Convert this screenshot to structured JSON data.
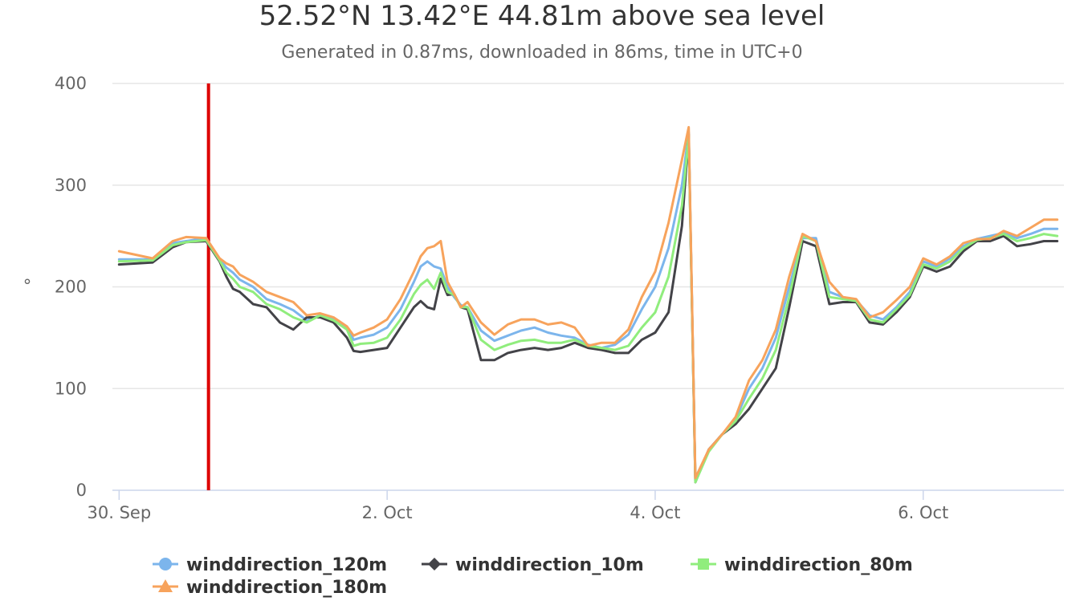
{
  "header": {
    "title": "52.52°N 13.42°E 44.81m above sea level",
    "subtitle": "Generated in 0.87ms, downloaded in 86ms, time in UTC+0"
  },
  "chart_data": {
    "type": "line",
    "title": "52.52°N 13.42°E 44.81m above sea level",
    "subtitle": "Generated in 0.87ms, downloaded in 86ms, time in UTC+0",
    "xlabel": "",
    "ylabel": "°",
    "x_unit": "days since 30. Sep 00:00 UTC",
    "xlim": [
      -0.05,
      7.05
    ],
    "ylim": [
      0,
      400
    ],
    "yticks": [
      0,
      100,
      200,
      300,
      400
    ],
    "xticks": [
      {
        "value": 0,
        "label": "30. Sep"
      },
      {
        "value": 2,
        "label": "2. Oct"
      },
      {
        "value": 4,
        "label": "4. Oct"
      },
      {
        "value": 6,
        "label": "6. Oct"
      }
    ],
    "grid": true,
    "legend_position": "bottom",
    "current_time_marker": {
      "x": 0.667,
      "color": "#dd0000"
    },
    "series": [
      {
        "name": "winddirection_120m",
        "color": "#7cb5ec",
        "marker": "circle",
        "points": [
          [
            0,
            227
          ],
          [
            0.25,
            227
          ],
          [
            0.4,
            243
          ],
          [
            0.5,
            245
          ],
          [
            0.65,
            248
          ],
          [
            0.75,
            227
          ],
          [
            0.8,
            219
          ],
          [
            0.85,
            214
          ],
          [
            0.9,
            207
          ],
          [
            1.0,
            200
          ],
          [
            1.1,
            188
          ],
          [
            1.2,
            183
          ],
          [
            1.3,
            177
          ],
          [
            1.4,
            167
          ],
          [
            1.5,
            172
          ],
          [
            1.6,
            168
          ],
          [
            1.7,
            160
          ],
          [
            1.75,
            148
          ],
          [
            1.8,
            150
          ],
          [
            1.9,
            153
          ],
          [
            2.0,
            160
          ],
          [
            2.1,
            178
          ],
          [
            2.2,
            205
          ],
          [
            2.25,
            220
          ],
          [
            2.3,
            225
          ],
          [
            2.35,
            220
          ],
          [
            2.4,
            218
          ],
          [
            2.45,
            200
          ],
          [
            2.5,
            190
          ],
          [
            2.55,
            182
          ],
          [
            2.6,
            180
          ],
          [
            2.7,
            157
          ],
          [
            2.8,
            147
          ],
          [
            2.9,
            152
          ],
          [
            3.0,
            157
          ],
          [
            3.1,
            160
          ],
          [
            3.2,
            155
          ],
          [
            3.3,
            152
          ],
          [
            3.4,
            150
          ],
          [
            3.5,
            143
          ],
          [
            3.6,
            140
          ],
          [
            3.7,
            143
          ],
          [
            3.8,
            153
          ],
          [
            3.9,
            178
          ],
          [
            4.0,
            200
          ],
          [
            4.1,
            238
          ],
          [
            4.2,
            300
          ],
          [
            4.25,
            352
          ],
          [
            4.3,
            10
          ],
          [
            4.4,
            40
          ],
          [
            4.5,
            55
          ],
          [
            4.6,
            70
          ],
          [
            4.7,
            100
          ],
          [
            4.8,
            120
          ],
          [
            4.9,
            150
          ],
          [
            5.0,
            200
          ],
          [
            5.1,
            248
          ],
          [
            5.2,
            248
          ],
          [
            5.3,
            195
          ],
          [
            5.4,
            190
          ],
          [
            5.5,
            187
          ],
          [
            5.6,
            172
          ],
          [
            5.7,
            168
          ],
          [
            5.8,
            180
          ],
          [
            5.9,
            195
          ],
          [
            6.0,
            225
          ],
          [
            6.1,
            220
          ],
          [
            6.2,
            228
          ],
          [
            6.3,
            240
          ],
          [
            6.4,
            247
          ],
          [
            6.5,
            250
          ],
          [
            6.6,
            253
          ],
          [
            6.7,
            248
          ],
          [
            6.8,
            252
          ],
          [
            6.9,
            257
          ],
          [
            7.0,
            257
          ]
        ]
      },
      {
        "name": "winddirection_10m",
        "color": "#434348",
        "marker": "diamond",
        "points": [
          [
            0,
            222
          ],
          [
            0.25,
            224
          ],
          [
            0.4,
            239
          ],
          [
            0.5,
            244
          ],
          [
            0.65,
            245
          ],
          [
            0.75,
            225
          ],
          [
            0.8,
            210
          ],
          [
            0.85,
            198
          ],
          [
            0.9,
            195
          ],
          [
            1.0,
            183
          ],
          [
            1.1,
            180
          ],
          [
            1.2,
            165
          ],
          [
            1.3,
            158
          ],
          [
            1.4,
            170
          ],
          [
            1.5,
            170
          ],
          [
            1.6,
            165
          ],
          [
            1.7,
            150
          ],
          [
            1.75,
            137
          ],
          [
            1.8,
            136
          ],
          [
            1.9,
            138
          ],
          [
            2.0,
            140
          ],
          [
            2.1,
            160
          ],
          [
            2.2,
            180
          ],
          [
            2.25,
            186
          ],
          [
            2.3,
            180
          ],
          [
            2.35,
            178
          ],
          [
            2.4,
            208
          ],
          [
            2.45,
            192
          ],
          [
            2.5,
            193
          ],
          [
            2.55,
            180
          ],
          [
            2.6,
            178
          ],
          [
            2.7,
            128
          ],
          [
            2.8,
            128
          ],
          [
            2.9,
            135
          ],
          [
            3.0,
            138
          ],
          [
            3.1,
            140
          ],
          [
            3.2,
            138
          ],
          [
            3.3,
            140
          ],
          [
            3.4,
            145
          ],
          [
            3.5,
            140
          ],
          [
            3.6,
            138
          ],
          [
            3.7,
            135
          ],
          [
            3.8,
            135
          ],
          [
            3.9,
            148
          ],
          [
            4.0,
            155
          ],
          [
            4.1,
            175
          ],
          [
            4.2,
            260
          ],
          [
            4.25,
            350
          ],
          [
            4.3,
            8
          ],
          [
            4.4,
            40
          ],
          [
            4.5,
            55
          ],
          [
            4.6,
            65
          ],
          [
            4.7,
            80
          ],
          [
            4.8,
            100
          ],
          [
            4.9,
            120
          ],
          [
            5.0,
            180
          ],
          [
            5.1,
            245
          ],
          [
            5.2,
            240
          ],
          [
            5.3,
            183
          ],
          [
            5.4,
            185
          ],
          [
            5.5,
            185
          ],
          [
            5.6,
            165
          ],
          [
            5.7,
            163
          ],
          [
            5.8,
            175
          ],
          [
            5.9,
            190
          ],
          [
            6.0,
            220
          ],
          [
            6.1,
            215
          ],
          [
            6.2,
            220
          ],
          [
            6.3,
            235
          ],
          [
            6.4,
            245
          ],
          [
            6.5,
            245
          ],
          [
            6.6,
            250
          ],
          [
            6.7,
            240
          ],
          [
            6.8,
            242
          ],
          [
            6.9,
            245
          ],
          [
            7.0,
            245
          ]
        ]
      },
      {
        "name": "winddirection_80m",
        "color": "#90ed7d",
        "marker": "square",
        "points": [
          [
            0,
            225
          ],
          [
            0.25,
            226
          ],
          [
            0.4,
            241
          ],
          [
            0.5,
            244
          ],
          [
            0.65,
            246
          ],
          [
            0.75,
            226
          ],
          [
            0.8,
            214
          ],
          [
            0.85,
            208
          ],
          [
            0.9,
            200
          ],
          [
            1.0,
            195
          ],
          [
            1.1,
            183
          ],
          [
            1.2,
            178
          ],
          [
            1.3,
            170
          ],
          [
            1.4,
            165
          ],
          [
            1.5,
            172
          ],
          [
            1.6,
            167
          ],
          [
            1.7,
            158
          ],
          [
            1.75,
            142
          ],
          [
            1.8,
            144
          ],
          [
            1.9,
            145
          ],
          [
            2.0,
            150
          ],
          [
            2.1,
            168
          ],
          [
            2.2,
            193
          ],
          [
            2.25,
            202
          ],
          [
            2.3,
            207
          ],
          [
            2.35,
            198
          ],
          [
            2.4,
            214
          ],
          [
            2.45,
            195
          ],
          [
            2.5,
            192
          ],
          [
            2.55,
            180
          ],
          [
            2.6,
            180
          ],
          [
            2.7,
            148
          ],
          [
            2.8,
            138
          ],
          [
            2.9,
            143
          ],
          [
            3.0,
            147
          ],
          [
            3.1,
            148
          ],
          [
            3.2,
            145
          ],
          [
            3.3,
            145
          ],
          [
            3.4,
            148
          ],
          [
            3.5,
            142
          ],
          [
            3.6,
            140
          ],
          [
            3.7,
            138
          ],
          [
            3.8,
            142
          ],
          [
            3.9,
            160
          ],
          [
            4.0,
            175
          ],
          [
            4.1,
            210
          ],
          [
            4.2,
            280
          ],
          [
            4.25,
            348
          ],
          [
            4.3,
            8
          ],
          [
            4.4,
            38
          ],
          [
            4.5,
            55
          ],
          [
            4.6,
            68
          ],
          [
            4.7,
            90
          ],
          [
            4.8,
            110
          ],
          [
            4.9,
            138
          ],
          [
            5.0,
            190
          ],
          [
            5.1,
            250
          ],
          [
            5.2,
            245
          ],
          [
            5.3,
            190
          ],
          [
            5.4,
            188
          ],
          [
            5.5,
            186
          ],
          [
            5.6,
            168
          ],
          [
            5.7,
            165
          ],
          [
            5.8,
            178
          ],
          [
            5.9,
            192
          ],
          [
            6.0,
            222
          ],
          [
            6.1,
            218
          ],
          [
            6.2,
            225
          ],
          [
            6.3,
            238
          ],
          [
            6.4,
            246
          ],
          [
            6.5,
            248
          ],
          [
            6.6,
            252
          ],
          [
            6.7,
            245
          ],
          [
            6.8,
            248
          ],
          [
            6.9,
            252
          ],
          [
            7.0,
            250
          ]
        ]
      },
      {
        "name": "winddirection_180m",
        "color": "#f7a35c",
        "marker": "triangle",
        "points": [
          [
            0,
            235
          ],
          [
            0.25,
            228
          ],
          [
            0.4,
            245
          ],
          [
            0.5,
            249
          ],
          [
            0.65,
            248
          ],
          [
            0.75,
            228
          ],
          [
            0.8,
            223
          ],
          [
            0.85,
            220
          ],
          [
            0.9,
            212
          ],
          [
            1.0,
            205
          ],
          [
            1.1,
            195
          ],
          [
            1.2,
            190
          ],
          [
            1.3,
            185
          ],
          [
            1.4,
            172
          ],
          [
            1.5,
            174
          ],
          [
            1.6,
            170
          ],
          [
            1.7,
            161
          ],
          [
            1.75,
            152
          ],
          [
            1.8,
            155
          ],
          [
            1.9,
            160
          ],
          [
            2.0,
            168
          ],
          [
            2.1,
            188
          ],
          [
            2.2,
            215
          ],
          [
            2.25,
            230
          ],
          [
            2.3,
            238
          ],
          [
            2.35,
            240
          ],
          [
            2.4,
            245
          ],
          [
            2.45,
            205
          ],
          [
            2.5,
            193
          ],
          [
            2.55,
            180
          ],
          [
            2.6,
            185
          ],
          [
            2.7,
            165
          ],
          [
            2.8,
            153
          ],
          [
            2.9,
            163
          ],
          [
            3.0,
            168
          ],
          [
            3.1,
            168
          ],
          [
            3.2,
            163
          ],
          [
            3.3,
            165
          ],
          [
            3.4,
            160
          ],
          [
            3.5,
            142
          ],
          [
            3.6,
            145
          ],
          [
            3.7,
            145
          ],
          [
            3.8,
            158
          ],
          [
            3.9,
            190
          ],
          [
            4.0,
            215
          ],
          [
            4.1,
            263
          ],
          [
            4.2,
            325
          ],
          [
            4.25,
            357
          ],
          [
            4.3,
            12
          ],
          [
            4.4,
            40
          ],
          [
            4.5,
            55
          ],
          [
            4.6,
            72
          ],
          [
            4.7,
            108
          ],
          [
            4.8,
            128
          ],
          [
            4.9,
            158
          ],
          [
            5.0,
            210
          ],
          [
            5.1,
            252
          ],
          [
            5.2,
            245
          ],
          [
            5.3,
            205
          ],
          [
            5.4,
            190
          ],
          [
            5.5,
            188
          ],
          [
            5.6,
            170
          ],
          [
            5.7,
            175
          ],
          [
            5.8,
            187
          ],
          [
            5.9,
            200
          ],
          [
            6.0,
            228
          ],
          [
            6.1,
            222
          ],
          [
            6.2,
            230
          ],
          [
            6.3,
            243
          ],
          [
            6.4,
            247
          ],
          [
            6.5,
            247
          ],
          [
            6.6,
            255
          ],
          [
            6.7,
            250
          ],
          [
            6.8,
            258
          ],
          [
            6.9,
            266
          ],
          [
            7.0,
            266
          ]
        ]
      }
    ]
  }
}
